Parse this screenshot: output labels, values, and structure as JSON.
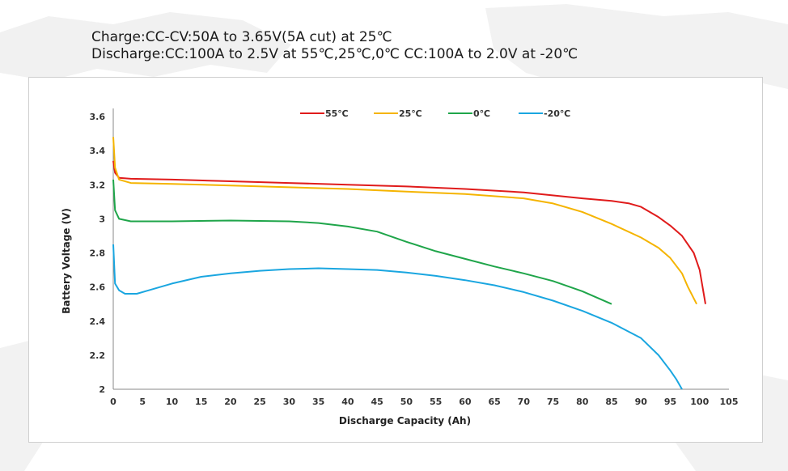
{
  "header": {
    "line1": "Charge:CC-CV:50A to 3.65V(5A cut) at 25℃",
    "line2": "Discharge:CC:100A to 2.5V at 55℃,25℃,0℃ CC:100A to 2.0V at -20℃"
  },
  "chart_data": {
    "type": "line",
    "title": "",
    "xlabel": "Discharge Capacity (Ah)",
    "ylabel": "Battery Voltage (V)",
    "xlim": [
      0,
      105
    ],
    "ylim": [
      2,
      3.6
    ],
    "x_ticks": [
      0,
      5,
      10,
      15,
      20,
      25,
      30,
      35,
      40,
      45,
      50,
      55,
      60,
      65,
      70,
      75,
      80,
      85,
      90,
      95,
      100,
      105
    ],
    "y_ticks": [
      2,
      2.2,
      2.4,
      2.6,
      2.8,
      3,
      3.2,
      3.4,
      3.6
    ],
    "y_tick_labels": [
      "2",
      "2.2",
      "2.4",
      "2.6",
      "2.8",
      "3",
      "3.2",
      "3.4",
      "3.6"
    ],
    "grid": false,
    "legend_position": "top-center",
    "series": [
      {
        "name": "55℃",
        "color": "#e01b1b",
        "points": [
          [
            0,
            3.34
          ],
          [
            0.3,
            3.27
          ],
          [
            1,
            3.24
          ],
          [
            3,
            3.235
          ],
          [
            10,
            3.23
          ],
          [
            20,
            3.22
          ],
          [
            30,
            3.21
          ],
          [
            40,
            3.2
          ],
          [
            50,
            3.19
          ],
          [
            60,
            3.175
          ],
          [
            70,
            3.155
          ],
          [
            80,
            3.12
          ],
          [
            85,
            3.105
          ],
          [
            88,
            3.09
          ],
          [
            90,
            3.07
          ],
          [
            93,
            3.01
          ],
          [
            95,
            2.96
          ],
          [
            97,
            2.9
          ],
          [
            99,
            2.8
          ],
          [
            100,
            2.7
          ],
          [
            100.5,
            2.6
          ],
          [
            101,
            2.5
          ]
        ]
      },
      {
        "name": "25℃",
        "color": "#f5b400",
        "points": [
          [
            0,
            3.48
          ],
          [
            0.3,
            3.3
          ],
          [
            1,
            3.23
          ],
          [
            3,
            3.21
          ],
          [
            10,
            3.205
          ],
          [
            20,
            3.195
          ],
          [
            30,
            3.185
          ],
          [
            40,
            3.175
          ],
          [
            50,
            3.16
          ],
          [
            60,
            3.145
          ],
          [
            70,
            3.12
          ],
          [
            75,
            3.09
          ],
          [
            80,
            3.04
          ],
          [
            85,
            2.97
          ],
          [
            90,
            2.89
          ],
          [
            93,
            2.83
          ],
          [
            95,
            2.77
          ],
          [
            97,
            2.68
          ],
          [
            98,
            2.6
          ],
          [
            99.5,
            2.5
          ]
        ]
      },
      {
        "name": "0℃",
        "color": "#1fa54a",
        "points": [
          [
            0,
            3.23
          ],
          [
            0.3,
            3.05
          ],
          [
            1,
            3.0
          ],
          [
            3,
            2.985
          ],
          [
            10,
            2.985
          ],
          [
            20,
            2.99
          ],
          [
            30,
            2.985
          ],
          [
            35,
            2.975
          ],
          [
            40,
            2.955
          ],
          [
            45,
            2.925
          ],
          [
            50,
            2.865
          ],
          [
            55,
            2.81
          ],
          [
            60,
            2.765
          ],
          [
            65,
            2.72
          ],
          [
            70,
            2.68
          ],
          [
            75,
            2.635
          ],
          [
            80,
            2.575
          ],
          [
            85,
            2.5
          ]
        ]
      },
      {
        "name": "-20℃",
        "color": "#1aa6e0",
        "points": [
          [
            0,
            2.85
          ],
          [
            0.3,
            2.62
          ],
          [
            1,
            2.58
          ],
          [
            2,
            2.56
          ],
          [
            4,
            2.56
          ],
          [
            6,
            2.58
          ],
          [
            10,
            2.62
          ],
          [
            15,
            2.66
          ],
          [
            20,
            2.68
          ],
          [
            25,
            2.695
          ],
          [
            30,
            2.705
          ],
          [
            35,
            2.71
          ],
          [
            40,
            2.705
          ],
          [
            45,
            2.7
          ],
          [
            50,
            2.685
          ],
          [
            55,
            2.665
          ],
          [
            60,
            2.64
          ],
          [
            65,
            2.61
          ],
          [
            70,
            2.57
          ],
          [
            75,
            2.52
          ],
          [
            80,
            2.46
          ],
          [
            85,
            2.39
          ],
          [
            90,
            2.3
          ],
          [
            93,
            2.2
          ],
          [
            95,
            2.11
          ],
          [
            96,
            2.06
          ],
          [
            97,
            2.0
          ]
        ]
      }
    ]
  }
}
